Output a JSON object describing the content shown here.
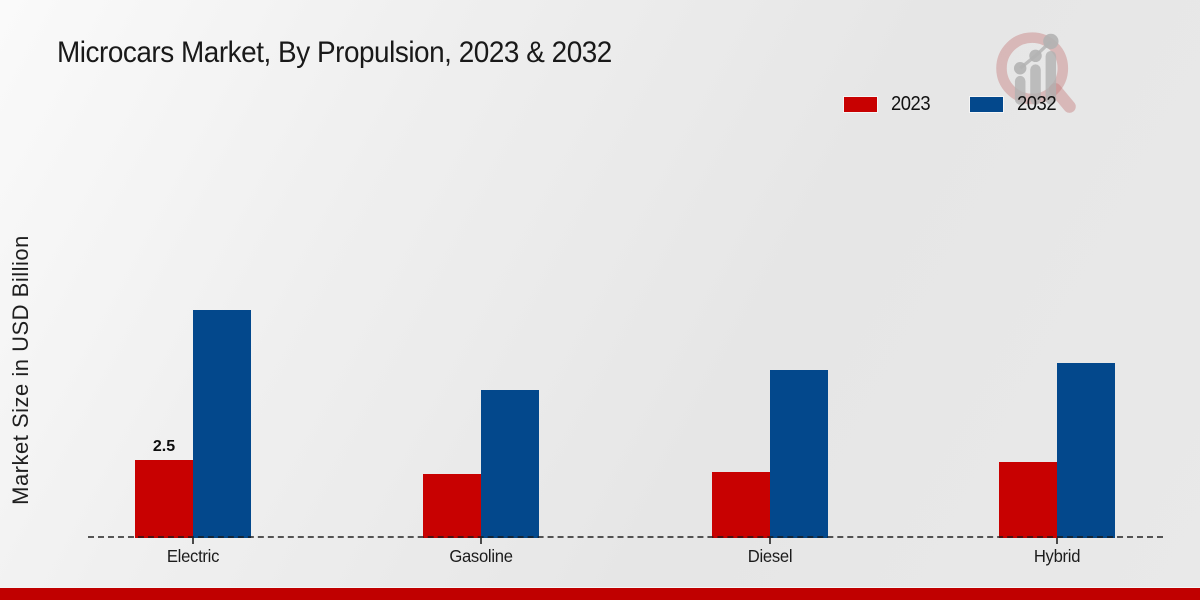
{
  "chart_data": {
    "type": "bar",
    "title": "Microcars Market, By Propulsion, 2023 & 2032",
    "ylabel": "Market Size in USD Billion",
    "xlabel": "",
    "categories": [
      "Electric",
      "Gasoline",
      "Diesel",
      "Hybrid"
    ],
    "series": [
      {
        "name": "2023",
        "color": "#c80101",
        "values": [
          2.5,
          2.05,
          2.1,
          2.45
        ],
        "labels": [
          "2.5",
          "",
          "",
          ""
        ]
      },
      {
        "name": "2032",
        "color": "#03488c",
        "values": [
          7.3,
          4.75,
          5.4,
          5.6
        ],
        "labels": [
          "",
          "",
          "",
          ""
        ]
      }
    ],
    "ylim": [
      0,
      7.5
    ],
    "grid": false,
    "axis_style": "dashed-baseline-only",
    "legend_position": "top-right"
  },
  "theme": {
    "accent_red": "#c80101",
    "accent_blue": "#03488c",
    "footer_bar_color": "#c00000",
    "background": "#ebebeb"
  },
  "icons": {
    "watermark": "magnifier-growth-icon"
  }
}
